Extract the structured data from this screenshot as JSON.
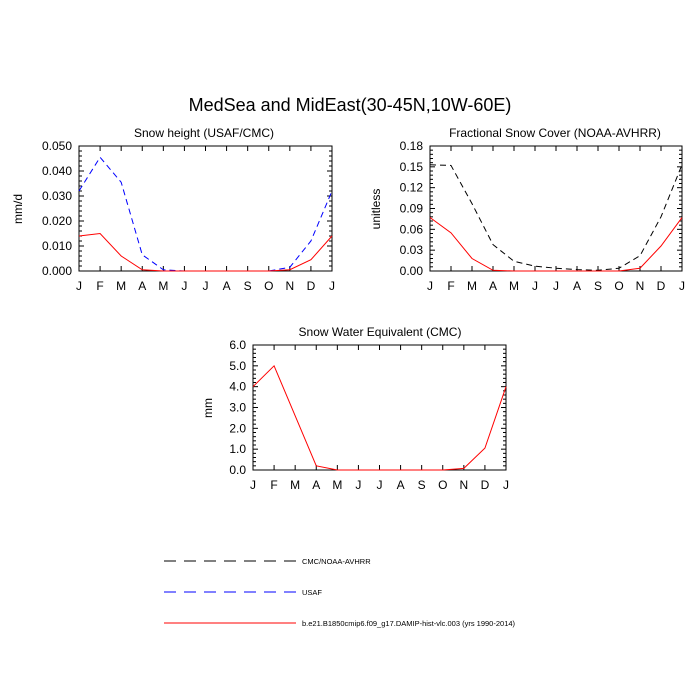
{
  "title": "MedSea and MidEast(30-45N,10W-60E)",
  "legend": [
    {
      "label": "CMC/NOAA-AVHRR",
      "color": "#000000",
      "dash": "dashed"
    },
    {
      "label": "USAF",
      "color": "#0000ff",
      "dash": "dashed"
    },
    {
      "label": "b.e21.B1850cmip6.f09_g17.DAMIP-hist-vlc.003 (yrs 1990-2014)",
      "color": "#ff0000",
      "dash": "solid"
    }
  ],
  "chart_data": [
    {
      "type": "line",
      "title": "Snow height (USAF/CMC)",
      "xlabel": "",
      "ylabel": "mm/d",
      "categories": [
        "J",
        "F",
        "M",
        "A",
        "M",
        "J",
        "J",
        "A",
        "S",
        "O",
        "N",
        "D",
        "J"
      ],
      "ylim": [
        0,
        0.05
      ],
      "yticks": [
        "0.000",
        "0.010",
        "0.020",
        "0.030",
        "0.040",
        "0.050"
      ],
      "series": [
        {
          "name": "USAF",
          "color": "#0000ff",
          "dash": "dashed",
          "values": [
            0.032,
            0.0455,
            0.0355,
            0.0065,
            0.0005,
            0,
            0,
            0,
            0,
            0,
            0.0015,
            0.012,
            0.032
          ]
        },
        {
          "name": "b.e21.B1850cmip6.f09_g17.DAMIP-hist-vlc.003 (yrs 1990-2014)",
          "color": "#ff0000",
          "dash": "solid",
          "values": [
            0.014,
            0.015,
            0.006,
            0.0005,
            0,
            0,
            0,
            0,
            0,
            0,
            0.0005,
            0.0045,
            0.014
          ]
        }
      ]
    },
    {
      "type": "line",
      "title": "Fractional Snow Cover (NOAA-AVHRR)",
      "xlabel": "",
      "ylabel": "unitless",
      "categories": [
        "J",
        "F",
        "M",
        "A",
        "M",
        "J",
        "J",
        "A",
        "S",
        "O",
        "N",
        "D",
        "J"
      ],
      "ylim": [
        0,
        0.18
      ],
      "yticks": [
        "0.00",
        "0.03",
        "0.06",
        "0.09",
        "0.12",
        "0.15",
        "0.18"
      ],
      "series": [
        {
          "name": "CMC/NOAA-AVHRR",
          "color": "#000000",
          "dash": "dashed",
          "values": [
            0.153,
            0.152,
            0.097,
            0.038,
            0.014,
            0.007,
            0.004,
            0.002,
            0.001,
            0.004,
            0.022,
            0.078,
            0.153
          ]
        },
        {
          "name": "b.e21.B1850cmip6.f09_g17.DAMIP-hist-vlc.003 (yrs 1990-2014)",
          "color": "#ff0000",
          "dash": "solid",
          "values": [
            0.077,
            0.055,
            0.018,
            0.001,
            0,
            0,
            0,
            0,
            0,
            0,
            0.004,
            0.036,
            0.077
          ]
        }
      ]
    },
    {
      "type": "line",
      "title": "Snow Water Equivalent (CMC)",
      "xlabel": "",
      "ylabel": "mm",
      "categories": [
        "J",
        "F",
        "M",
        "A",
        "M",
        "J",
        "J",
        "A",
        "S",
        "O",
        "N",
        "D",
        "J"
      ],
      "ylim": [
        0,
        6
      ],
      "yticks": [
        "0.0",
        "1.0",
        "2.0",
        "3.0",
        "4.0",
        "5.0",
        "6.0"
      ],
      "series": [
        {
          "name": "CMC/NOAA-AVHRR",
          "color": "#000000",
          "dash": "dashed",
          "values": [
            0,
            0,
            0,
            0,
            0,
            0,
            0,
            0,
            0,
            0,
            0,
            0,
            0
          ]
        },
        {
          "name": "b.e21.B1850cmip6.f09_g17.DAMIP-hist-vlc.003 (yrs 1990-2014)",
          "color": "#ff0000",
          "dash": "solid",
          "values": [
            4.0,
            5.0,
            2.6,
            0.2,
            0,
            0,
            0,
            0,
            0,
            0,
            0.08,
            1.05,
            4.0
          ]
        }
      ]
    }
  ]
}
